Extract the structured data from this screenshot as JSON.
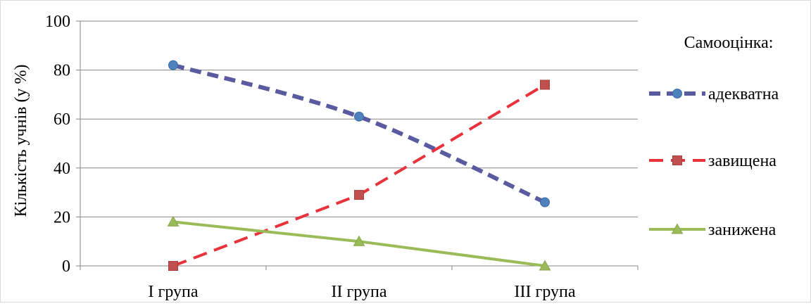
{
  "chart_data": {
    "type": "line",
    "categories": [
      "І група",
      "ІІ група",
      "ІІІ група"
    ],
    "ylabel": "Кількість учнів (у %)",
    "ylim": [
      0,
      100
    ],
    "yticks": [
      0,
      20,
      40,
      60,
      80,
      100
    ],
    "grid": true,
    "legend_title": "Самооцінка:",
    "legend_position": "right",
    "series": [
      {
        "name": "адекватна",
        "values": [
          82,
          61,
          26
        ],
        "color": "#5a5aa0",
        "marker": "circle",
        "marker_color": "#4f81bd",
        "line_style": "dashed",
        "smooth": true
      },
      {
        "name": "завищена",
        "values": [
          0,
          29,
          74
        ],
        "color": "#e8323c",
        "marker": "square",
        "marker_color": "#c0504d",
        "line_style": "dashed"
      },
      {
        "name": "занижена",
        "values": [
          18,
          10,
          0
        ],
        "color": "#9bbb59",
        "marker": "triangle",
        "marker_color": "#9bbb59",
        "line_style": "solid"
      }
    ]
  }
}
